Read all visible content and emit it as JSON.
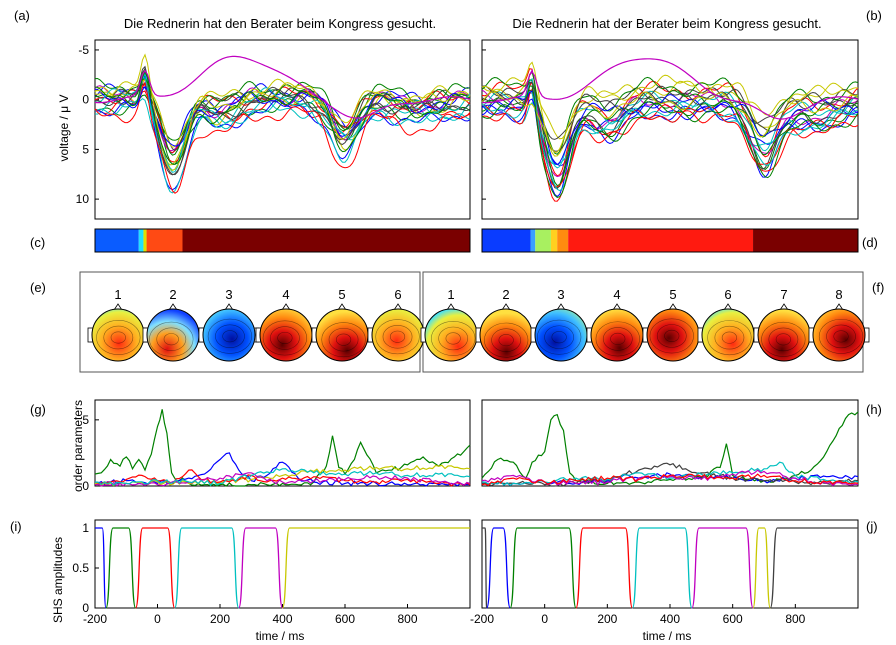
{
  "figure": {
    "panel_letters": [
      "(a)",
      "(b)",
      "(c)",
      "(d)",
      "(e)",
      "(f)",
      "(g)",
      "(h)",
      "(i)",
      "(j)"
    ],
    "titles": [
      "Die Rednerin hat den Berater beim Kongress gesucht.",
      "Die Rednerin hat der Berater beim Kongress gesucht."
    ]
  },
  "chart_data": [
    {
      "id": "a",
      "type": "line",
      "title": "Die Rednerin hat den Berater beim Kongress gesucht.",
      "ylabel": "voltage / μ V",
      "x": [
        -200,
        1000
      ],
      "ylim": [
        12,
        -6
      ],
      "y_reversed": true,
      "yticks": [
        "-5",
        "0",
        "5",
        "10"
      ],
      "note": "ERP traces of many electrodes; one magenta trace peaks near -4.5 µV around 300 ms; negative down minimum near 9 µV at ~50 ms"
    },
    {
      "id": "b",
      "type": "line",
      "title": "Die Rednerin hat der Berater beim Kongress gesucht.",
      "x": [
        -200,
        1000
      ],
      "ylim": [
        12,
        -6
      ],
      "y_reversed": true
    },
    {
      "id": "c",
      "type": "bar",
      "label": "segmentation",
      "segments": [
        {
          "from": -200,
          "to": -60,
          "color": "#0a5cff"
        },
        {
          "from": -60,
          "to": -45,
          "color": "#22e0ff"
        },
        {
          "from": -45,
          "to": -35,
          "color": "#e0e000"
        },
        {
          "from": -35,
          "to": 80,
          "color": "#ff4a14"
        },
        {
          "from": 80,
          "to": 1000,
          "color": "#7a0000"
        }
      ]
    },
    {
      "id": "d",
      "type": "bar",
      "label": "segmentation",
      "segments": [
        {
          "from": -200,
          "to": -45,
          "color": "#0a3cff"
        },
        {
          "from": -45,
          "to": -30,
          "color": "#3aa0ff"
        },
        {
          "from": -30,
          "to": 20,
          "color": "#a8f060"
        },
        {
          "from": 20,
          "to": 40,
          "color": "#ffd020"
        },
        {
          "from": 40,
          "to": 75,
          "color": "#ff8c10"
        },
        {
          "from": 75,
          "to": 665,
          "color": "#ff1a10"
        },
        {
          "from": 665,
          "to": 1000,
          "color": "#7a0000"
        }
      ]
    },
    {
      "id": "e",
      "type": "heatmap",
      "labels": [
        "1",
        "2",
        "3",
        "4",
        "5",
        "6"
      ],
      "maps": [
        "warm",
        "mixed",
        "cold",
        "hot",
        "hot",
        "warm"
      ]
    },
    {
      "id": "f",
      "type": "heatmap",
      "labels": [
        "1",
        "2",
        "3",
        "4",
        "5",
        "6",
        "7",
        "8"
      ],
      "maps": [
        "warm",
        "hot",
        "cold",
        "hot",
        "hot",
        "warm",
        "hot",
        "hot"
      ]
    },
    {
      "id": "g",
      "type": "line",
      "ylabel": "order parameters",
      "ylim": [
        0,
        6.5
      ],
      "yticks": [
        "0",
        "5"
      ],
      "x": [
        -200,
        1000
      ],
      "series": [
        {
          "color": "#008000",
          "x": [
            -200,
            -180,
            -150,
            -120,
            -100,
            -80,
            -60,
            -40,
            -20,
            0,
            15,
            30,
            45,
            60,
            80,
            100,
            150,
            200,
            300,
            350,
            400,
            450,
            500,
            540,
            560,
            580,
            600,
            630,
            650,
            700,
            750,
            800,
            850,
            900,
            950,
            980,
            1000
          ],
          "y": [
            0.9,
            1.0,
            2.0,
            1.5,
            2.2,
            1.3,
            2.0,
            1.2,
            2.4,
            4.5,
            5.8,
            4.0,
            1.0,
            0.4,
            0.6,
            0.2,
            0.1,
            0.1,
            0.1,
            0.1,
            0.2,
            0.1,
            0.3,
            1.5,
            3.8,
            1.4,
            0.9,
            2.0,
            3.3,
            1.0,
            1.2,
            1.6,
            2.2,
            1.5,
            2.2,
            2.6,
            3.1
          ]
        },
        {
          "color": "#0000ff",
          "x": [
            -200,
            -150,
            -100,
            -50,
            0,
            50,
            100,
            150,
            200,
            230,
            260,
            300,
            350,
            400,
            450,
            500,
            600,
            700,
            800,
            900,
            1000
          ],
          "y": [
            0.2,
            0.3,
            0.4,
            0.3,
            0.2,
            0.3,
            0.6,
            0.9,
            2.0,
            2.5,
            1.2,
            0.4,
            0.8,
            1.8,
            0.6,
            0.3,
            0.2,
            0.2,
            0.1,
            0.1,
            0.1
          ]
        },
        {
          "color": "#c8c800",
          "x": [
            -200,
            -100,
            0,
            100,
            200,
            300,
            400,
            500,
            600,
            700,
            800,
            900,
            1000
          ],
          "y": [
            0.2,
            0.2,
            0.3,
            0.2,
            0.3,
            0.5,
            0.8,
            1.1,
            1.2,
            1.4,
            1.3,
            1.5,
            1.3
          ]
        },
        {
          "color": "#ff0000",
          "x": [
            -200,
            -150,
            -100,
            -50,
            0,
            50,
            100,
            150,
            200,
            250,
            300,
            350,
            400,
            500,
            600,
            700,
            800,
            900,
            1000
          ],
          "y": [
            0.1,
            0.3,
            0.5,
            0.8,
            0.4,
            0.2,
            1.2,
            0.5,
            0.3,
            0.4,
            0.8,
            0.3,
            0.6,
            0.7,
            0.4,
            0.3,
            0.5,
            0.2,
            0.1
          ]
        },
        {
          "color": "#c000c0",
          "x": [
            -200,
            -100,
            0,
            100,
            200,
            300,
            350,
            400,
            500,
            600,
            700,
            800,
            900,
            1000
          ],
          "y": [
            0.1,
            0.2,
            0.1,
            0.3,
            0.6,
            1.0,
            0.4,
            0.3,
            0.4,
            0.5,
            0.7,
            0.6,
            0.3,
            0.2
          ]
        },
        {
          "color": "#00c0c0",
          "x": [
            -200,
            -100,
            0,
            100,
            200,
            300,
            400,
            500,
            600,
            700,
            800,
            900,
            1000
          ],
          "y": [
            0.3,
            0.2,
            0.4,
            0.3,
            0.2,
            0.8,
            1.3,
            1.0,
            0.9,
            1.0,
            0.8,
            0.9,
            0.7
          ]
        }
      ]
    },
    {
      "id": "h",
      "type": "line",
      "ylim": [
        0,
        6.5
      ],
      "x": [
        -200,
        1000
      ],
      "series": [
        {
          "color": "#008000",
          "x": [
            -200,
            -150,
            -100,
            -60,
            -40,
            0,
            20,
            40,
            60,
            80,
            100,
            200,
            300,
            400,
            500,
            560,
            580,
            600,
            650,
            700,
            750,
            800,
            850,
            900,
            930,
            960,
            1000
          ],
          "y": [
            0.6,
            2.0,
            1.8,
            0.6,
            1.8,
            2.6,
            5.0,
            5.4,
            4.2,
            1.0,
            0.4,
            0.2,
            0.3,
            0.5,
            0.6,
            1.4,
            3.2,
            0.8,
            0.5,
            0.4,
            0.5,
            0.8,
            1.2,
            2.6,
            3.8,
            5.1,
            5.6
          ]
        },
        {
          "color": "#0000ff",
          "x": [
            -200,
            -100,
            0,
            100,
            200,
            250,
            300,
            400,
            500,
            600,
            700,
            800,
            900,
            1000
          ],
          "y": [
            0.3,
            0.2,
            0.3,
            0.2,
            0.4,
            0.8,
            0.6,
            0.9,
            0.7,
            0.6,
            0.4,
            0.6,
            0.7,
            0.7
          ]
        },
        {
          "color": "#404040",
          "x": [
            -200,
            -100,
            0,
            100,
            200,
            300,
            350,
            400,
            450,
            500,
            600,
            700,
            800,
            900,
            1000
          ],
          "y": [
            0.2,
            0.2,
            0.1,
            0.2,
            0.5,
            1.2,
            1.5,
            1.6,
            1.3,
            1.0,
            0.6,
            0.4,
            0.3,
            0.2,
            0.4
          ]
        },
        {
          "color": "#00c0c0",
          "x": [
            -200,
            -100,
            0,
            100,
            200,
            300,
            400,
            500,
            600,
            700,
            750,
            800,
            900,
            1000
          ],
          "y": [
            0.3,
            0.2,
            0.3,
            0.6,
            0.5,
            1.0,
            0.6,
            0.9,
            1.0,
            1.3,
            1.8,
            0.8,
            0.4,
            0.3
          ]
        },
        {
          "color": "#c000c0",
          "x": [
            -200,
            -100,
            0,
            100,
            200,
            300,
            400,
            500,
            600,
            700,
            800,
            900,
            1000
          ],
          "y": [
            0.4,
            0.8,
            0.3,
            0.2,
            0.3,
            0.6,
            0.7,
            0.5,
            0.9,
            1.1,
            0.6,
            0.2,
            0.1
          ]
        },
        {
          "color": "#ff0000",
          "x": [
            -200,
            -100,
            0,
            100,
            200,
            300,
            400,
            500,
            600,
            700,
            800,
            900,
            1000
          ],
          "y": [
            0.1,
            0.6,
            0.3,
            0.4,
            0.6,
            0.5,
            0.8,
            0.7,
            0.6,
            0.8,
            0.4,
            0.3,
            0.2
          ]
        }
      ]
    },
    {
      "id": "i",
      "type": "line",
      "ylabel": "SHS amplitudes",
      "xlabel": "time / ms",
      "ylim": [
        0,
        1.1
      ],
      "yticks": [
        "0",
        "0.5",
        "1"
      ],
      "xticks": [
        "-200",
        "0",
        "200",
        "400",
        "600",
        "800"
      ],
      "x": [
        -200,
        1000
      ],
      "pulses": [
        {
          "color": "#0000ff",
          "from": -200,
          "to": -165
        },
        {
          "color": "#008000",
          "from": -165,
          "to": -70
        },
        {
          "color": "#ff0000",
          "from": -70,
          "to": 55
        },
        {
          "color": "#00c0c0",
          "from": 55,
          "to": 260
        },
        {
          "color": "#c000c0",
          "from": 260,
          "to": 400
        },
        {
          "color": "#c8c800",
          "from": 400,
          "to": 1000
        }
      ]
    },
    {
      "id": "j",
      "type": "line",
      "xlabel": "time / ms",
      "ylim": [
        0,
        1.1
      ],
      "xticks": [
        "-200",
        "0",
        "200",
        "400",
        "600",
        "800"
      ],
      "x": [
        -200,
        1000
      ],
      "pulses": [
        {
          "color": "#404040",
          "from": -200,
          "to": -185
        },
        {
          "color": "#0000ff",
          "from": -185,
          "to": -110
        },
        {
          "color": "#008000",
          "from": -110,
          "to": 100
        },
        {
          "color": "#ff0000",
          "from": 100,
          "to": 280
        },
        {
          "color": "#00c0c0",
          "from": 280,
          "to": 470
        },
        {
          "color": "#c000c0",
          "from": 470,
          "to": 665
        },
        {
          "color": "#c8c800",
          "from": 665,
          "to": 720
        },
        {
          "color": "#404040",
          "from": 720,
          "to": 1000
        }
      ]
    }
  ]
}
